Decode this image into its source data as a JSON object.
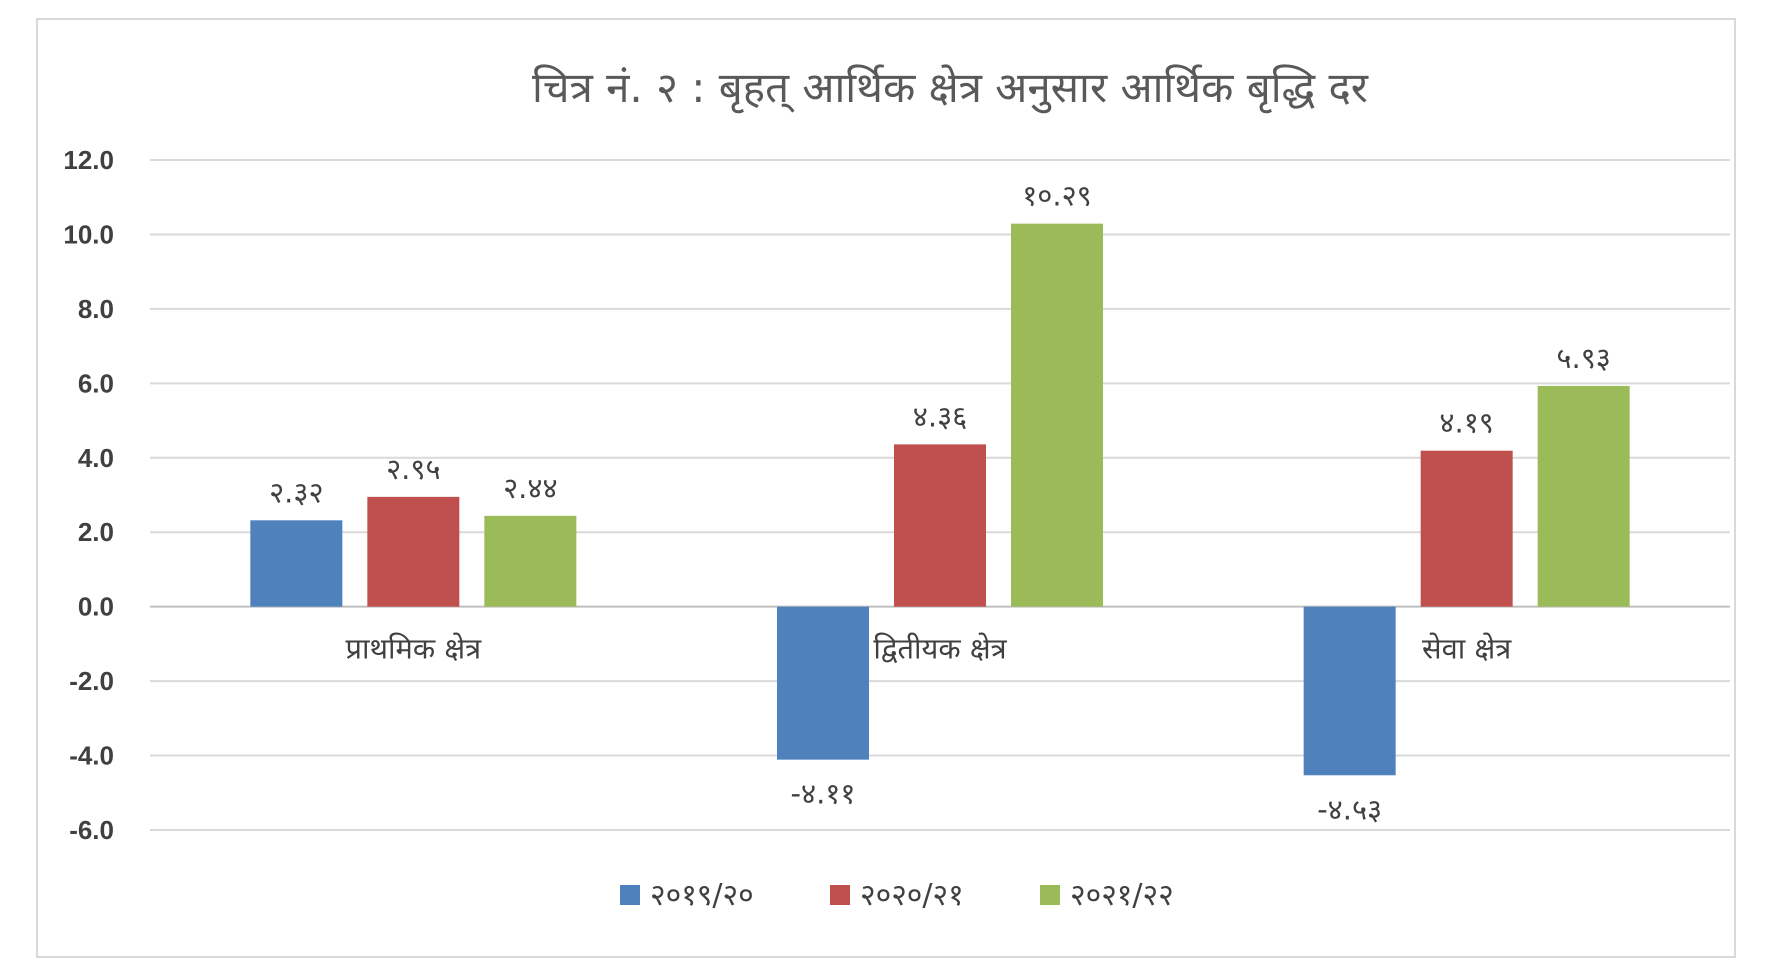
{
  "chart_data": {
    "type": "bar",
    "title": "चित्र नं. २ : बृहत् आर्थिक क्षेत्र  अनुसार  आर्थिक बृद्धि दर",
    "categories": [
      "प्राथमिक क्षेत्र",
      "द्वितीयक क्षेत्र",
      "सेवा क्षेत्र"
    ],
    "series": [
      {
        "name": "२०१९/२०",
        "color": "#4f81bd",
        "values": [
          2.32,
          -4.11,
          -4.53
        ],
        "labels": [
          "२.३२",
          "-४.११",
          "-४.५३"
        ]
      },
      {
        "name": "२०२०/२१",
        "color": "#c0504d",
        "values": [
          2.95,
          4.36,
          4.19
        ],
        "labels": [
          "२.९५",
          "४.३६",
          "४.१९"
        ]
      },
      {
        "name": "२०२१/२२",
        "color": "#9bbb59",
        "values": [
          2.44,
          10.29,
          5.93
        ],
        "labels": [
          "२.४४",
          "१०.२९",
          "५.९३"
        ]
      }
    ],
    "ylim": [
      -6,
      12
    ],
    "yticks": [
      "12.0",
      "10.0",
      "8.0",
      "6.0",
      "4.0",
      "2.0",
      "0.0",
      "-2.0",
      "-4.0",
      "-6.0"
    ],
    "ytick_values": [
      12,
      10,
      8,
      6,
      4,
      2,
      0,
      -2,
      -4,
      -6
    ],
    "grid": true,
    "legend_position": "bottom",
    "xlabel": "",
    "ylabel": ""
  }
}
